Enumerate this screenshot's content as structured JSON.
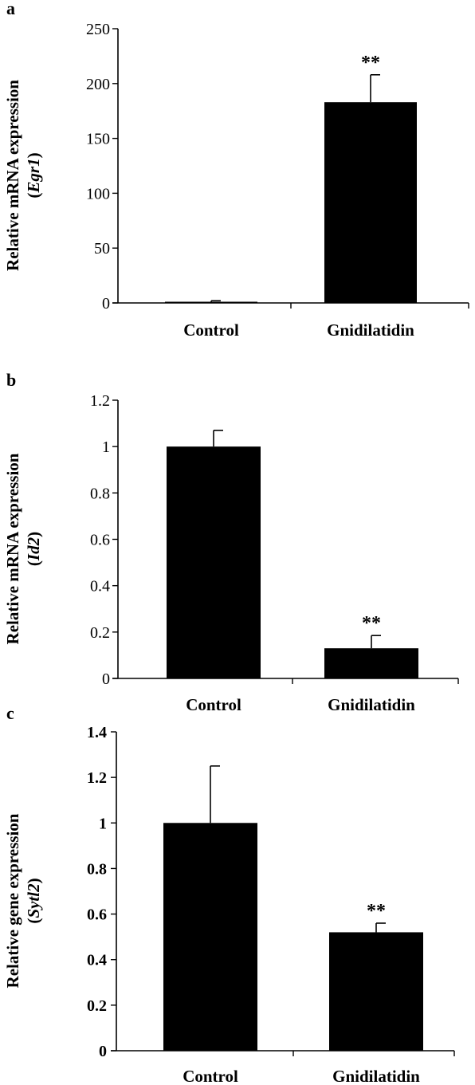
{
  "chart_data": [
    {
      "type": "bar",
      "panel": "a",
      "categories": [
        "Control",
        "Gnidilatidin"
      ],
      "values": [
        1,
        183
      ],
      "errors": [
        1,
        25
      ],
      "ylabel": "Relative mRNA expression",
      "ylabel_gene": "Egr1",
      "ylim": [
        0,
        250
      ],
      "yticks": [
        "0",
        "50",
        "100",
        "150",
        "200",
        "250"
      ],
      "ytick_values": [
        0,
        50,
        100,
        150,
        200,
        250
      ],
      "annotations": [
        "",
        "**"
      ],
      "ytick_bold": false
    },
    {
      "type": "bar",
      "panel": "b",
      "categories": [
        "Control",
        "Gnidilatidin"
      ],
      "values": [
        1.0,
        0.13
      ],
      "errors": [
        0.07,
        0.055
      ],
      "ylabel": "Relative mRNA expression",
      "ylabel_gene": "Id2",
      "ylim": [
        0,
        1.2
      ],
      "yticks": [
        "0",
        "0.2",
        "0.4",
        "0.6",
        "0.8",
        "1",
        "1.2"
      ],
      "ytick_values": [
        0,
        0.2,
        0.4,
        0.6,
        0.8,
        1.0,
        1.2
      ],
      "annotations": [
        "",
        "**"
      ],
      "ytick_bold": false
    },
    {
      "type": "bar",
      "panel": "c",
      "categories": [
        "Control",
        "Gnidilatidin"
      ],
      "values": [
        1.0,
        0.52
      ],
      "errors": [
        0.25,
        0.04
      ],
      "ylabel": "Relative gene expression",
      "ylabel_gene": "Sytl2",
      "ylim": [
        0,
        1.4
      ],
      "yticks": [
        "0",
        "0.2",
        "0.4",
        "0.6",
        "0.8",
        "1",
        "1.2",
        "1.4"
      ],
      "ytick_values": [
        0,
        0.2,
        0.4,
        0.6,
        0.8,
        1.0,
        1.2,
        1.4
      ],
      "annotations": [
        "",
        "**"
      ],
      "ytick_bold": true
    }
  ]
}
